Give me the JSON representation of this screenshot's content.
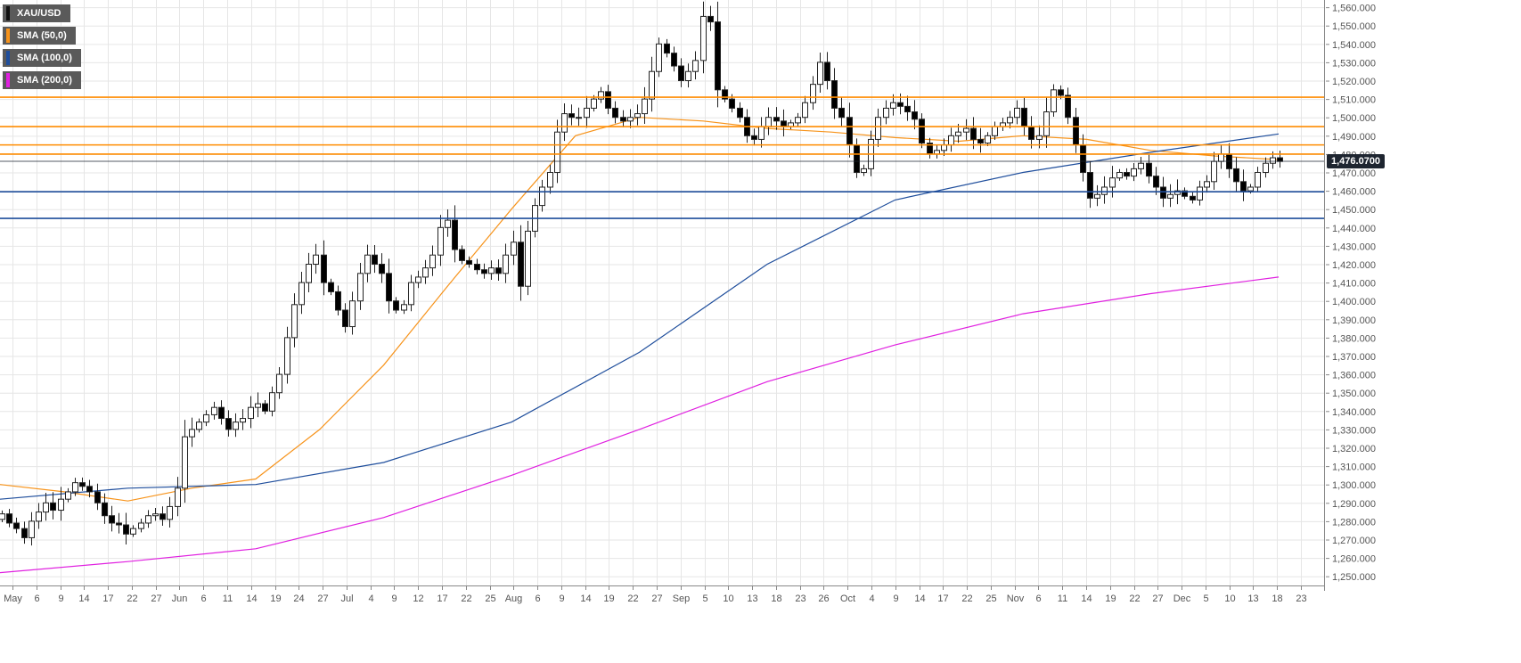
{
  "legend": [
    {
      "label": "XAU/USD",
      "color": "#000000"
    },
    {
      "label": "SMA (50,0)",
      "color": "#f7931a"
    },
    {
      "label": "SMA (100,0)",
      "color": "#1f4e9c"
    },
    {
      "label": "SMA (200,0)",
      "color": "#e020e0"
    }
  ],
  "last_price_label": "1,476.0700",
  "colors": {
    "background": "#ffffff",
    "grid": "#e6e6e6",
    "resistance": "#ff8c00",
    "support": "#1f4e9c",
    "sma50": "#f7931a",
    "sma100": "#1f4e9c",
    "sma200": "#e020e0",
    "candle_up_fill": "#ffffff",
    "candle_down_fill": "#000000"
  },
  "chart_data": {
    "type": "candlestick",
    "symbol": "XAU/USD",
    "timeframe": "daily",
    "ylim": [
      1245,
      1562
    ],
    "ytick_step": 10,
    "last_price": 1476.07,
    "x_tick_labels": [
      "May",
      "6",
      "9",
      "14",
      "17",
      "22",
      "27",
      "Jun",
      "6",
      "11",
      "14",
      "19",
      "24",
      "27",
      "Jul",
      "4",
      "9",
      "12",
      "17",
      "22",
      "25",
      "Aug",
      "6",
      "9",
      "14",
      "19",
      "22",
      "27",
      "Sep",
      "5",
      "10",
      "13",
      "18",
      "23",
      "26",
      "Oct",
      "4",
      "9",
      "14",
      "17",
      "22",
      "25",
      "Nov",
      "6",
      "11",
      "14",
      "19",
      "22",
      "27",
      "Dec",
      "5",
      "10",
      "13",
      "18",
      "23"
    ],
    "horizontal_levels": [
      {
        "type": "resistance",
        "value": 1511
      },
      {
        "type": "resistance",
        "value": 1495
      },
      {
        "type": "resistance",
        "value": 1485
      },
      {
        "type": "resistance",
        "value": 1480
      },
      {
        "type": "support",
        "value": 1459.5
      },
      {
        "type": "support",
        "value": 1445
      }
    ],
    "close_path": [
      1284,
      1279,
      1276,
      1271,
      1280,
      1285,
      1290,
      1286,
      1292,
      1296,
      1301,
      1299,
      1296,
      1290,
      1283,
      1279,
      1278,
      1273,
      1276,
      1279,
      1283,
      1284,
      1281,
      1288,
      1298,
      1326,
      1330,
      1334,
      1338,
      1342,
      1336,
      1330,
      1334,
      1336,
      1342,
      1344,
      1340,
      1350,
      1360,
      1380,
      1398,
      1410,
      1420,
      1425,
      1410,
      1405,
      1395,
      1386,
      1400,
      1415,
      1425,
      1420,
      1415,
      1400,
      1395,
      1398,
      1410,
      1413,
      1418,
      1425,
      1440,
      1444,
      1428,
      1422,
      1420,
      1417,
      1415,
      1418,
      1415,
      1425,
      1432,
      1408,
      1438,
      1452,
      1462,
      1470,
      1492,
      1502,
      1500,
      1500,
      1505,
      1510,
      1514,
      1505,
      1500,
      1498,
      1500,
      1502,
      1510,
      1525,
      1540,
      1535,
      1528,
      1520,
      1525,
      1531,
      1555,
      1552,
      1515,
      1510,
      1505,
      1500,
      1490,
      1488,
      1495,
      1500,
      1498,
      1495,
      1497,
      1500,
      1508,
      1518,
      1530,
      1520,
      1505,
      1500,
      1485,
      1470,
      1472,
      1488,
      1500,
      1505,
      1508,
      1506,
      1503,
      1499,
      1486,
      1480,
      1482,
      1485,
      1490,
      1492,
      1494,
      1488,
      1486,
      1490,
      1495,
      1497,
      1500,
      1505,
      1495,
      1488,
      1490,
      1503,
      1515,
      1512,
      1500,
      1485,
      1470,
      1456,
      1458,
      1462,
      1467,
      1470,
      1468,
      1472,
      1475,
      1468,
      1462,
      1456,
      1458,
      1460,
      1457,
      1455,
      1462,
      1465,
      1476,
      1480,
      1472,
      1465,
      1460,
      1462,
      1470,
      1475,
      1478,
      1476
    ],
    "series": [
      {
        "name": "SMA (50,0)",
        "x": [
          0,
          0.05,
          0.1,
          0.15,
          0.2,
          0.25,
          0.3,
          0.35,
          0.4,
          0.45,
          0.5,
          0.55,
          0.6,
          0.65,
          0.7,
          0.75,
          0.8,
          0.85,
          0.9,
          0.95,
          1
        ],
        "y": [
          1300,
          1296,
          1291,
          1298,
          1303,
          1330,
          1365,
          1408,
          1450,
          1490,
          1500,
          1498,
          1494,
          1492,
          1489,
          1487,
          1490,
          1488,
          1482,
          1479,
          1477
        ]
      },
      {
        "name": "SMA (100,0)",
        "x": [
          0,
          0.1,
          0.2,
          0.3,
          0.4,
          0.5,
          0.6,
          0.7,
          0.8,
          0.9,
          1
        ],
        "y": [
          1292,
          1298,
          1300,
          1312,
          1334,
          1372,
          1420,
          1455,
          1470,
          1481,
          1491
        ]
      },
      {
        "name": "SMA (200,0)",
        "x": [
          0,
          0.1,
          0.2,
          0.3,
          0.4,
          0.5,
          0.6,
          0.7,
          0.8,
          0.9,
          1
        ],
        "y": [
          1252,
          1258,
          1265,
          1282,
          1305,
          1330,
          1356,
          1376,
          1393,
          1404,
          1413
        ]
      }
    ]
  }
}
